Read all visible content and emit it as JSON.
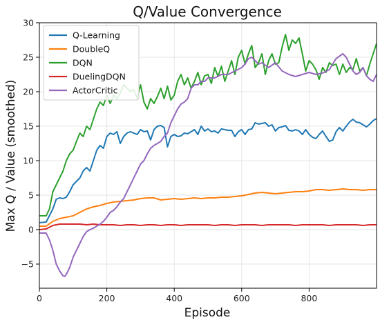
{
  "chart_data": {
    "type": "line",
    "title": "Q/Value Convergence",
    "xlabel": "Episode",
    "ylabel": "Max Q / Value (smoothed)",
    "xlim": [
      0,
      1000
    ],
    "ylim": [
      -8.5,
      30
    ],
    "xticks": [
      0,
      200,
      400,
      600,
      800
    ],
    "yticks": [
      -5,
      0,
      5,
      10,
      15,
      20,
      25,
      30
    ],
    "grid": true,
    "legend_position": "top-left",
    "series": [
      {
        "name": "Q-Learning",
        "color": "#1f77b4",
        "x": [
          0,
          20,
          40,
          50,
          60,
          70,
          80,
          90,
          100,
          110,
          120,
          130,
          140,
          150,
          160,
          170,
          180,
          190,
          200,
          210,
          220,
          230,
          240,
          250,
          260,
          270,
          280,
          290,
          300,
          310,
          320,
          330,
          340,
          350,
          360,
          370,
          380,
          390,
          400,
          410,
          420,
          430,
          440,
          450,
          460,
          470,
          480,
          490,
          500,
          510,
          520,
          530,
          540,
          550,
          560,
          570,
          580,
          590,
          600,
          610,
          620,
          630,
          640,
          650,
          660,
          670,
          680,
          690,
          700,
          710,
          720,
          730,
          740,
          750,
          760,
          770,
          780,
          790,
          800,
          810,
          820,
          830,
          840,
          850,
          860,
          870,
          880,
          890,
          900,
          910,
          920,
          930,
          940,
          950,
          960,
          970,
          980,
          990,
          1000
        ],
        "y": [
          1.0,
          1.1,
          3.0,
          4.4,
          4.6,
          4.5,
          4.7,
          5.5,
          6.5,
          7.0,
          7.5,
          8.5,
          9.0,
          8.5,
          10.0,
          11.5,
          12.2,
          11.8,
          13.5,
          14.0,
          13.8,
          14.2,
          12.5,
          13.5,
          14.0,
          14.2,
          14.0,
          13.8,
          14.5,
          14.2,
          14.3,
          13.0,
          14.5,
          15.0,
          15.1,
          14.8,
          12.0,
          13.5,
          13.8,
          13.5,
          13.6,
          14.0,
          13.9,
          14.2,
          14.5,
          13.8,
          15.0,
          14.3,
          14.6,
          14.2,
          14.3,
          14.0,
          14.6,
          14.5,
          14.4,
          14.4,
          13.5,
          14.2,
          14.5,
          13.8,
          14.5,
          14.6,
          15.5,
          15.3,
          15.4,
          15.5,
          15.0,
          15.2,
          14.3,
          14.8,
          14.9,
          15.1,
          14.4,
          14.3,
          14.5,
          14.3,
          13.8,
          14.5,
          13.8,
          13.4,
          13.2,
          13.8,
          14.3,
          13.5,
          12.8,
          13.0,
          14.2,
          14.8,
          14.3,
          15.0,
          15.6,
          16.0,
          15.6,
          15.5,
          15.2,
          14.9,
          15.3,
          15.8,
          16.1
        ]
      },
      {
        "name": "DoubleQ",
        "color": "#ff7f0e",
        "x": [
          0,
          20,
          40,
          60,
          80,
          100,
          120,
          140,
          160,
          180,
          200,
          220,
          240,
          260,
          280,
          300,
          320,
          340,
          360,
          380,
          400,
          420,
          440,
          460,
          480,
          500,
          520,
          540,
          560,
          580,
          600,
          620,
          640,
          660,
          680,
          700,
          720,
          740,
          760,
          780,
          800,
          820,
          840,
          860,
          880,
          900,
          920,
          940,
          960,
          980,
          1000
        ],
        "y": [
          0.5,
          0.5,
          1.2,
          1.6,
          1.8,
          2.0,
          2.5,
          3.0,
          3.3,
          3.5,
          3.8,
          4.0,
          4.1,
          4.2,
          4.3,
          4.5,
          4.6,
          4.6,
          4.3,
          4.4,
          4.5,
          4.4,
          4.5,
          4.6,
          4.5,
          4.6,
          4.6,
          4.7,
          4.7,
          4.8,
          4.9,
          5.1,
          5.3,
          5.4,
          5.3,
          5.2,
          5.3,
          5.4,
          5.5,
          5.5,
          5.6,
          5.8,
          5.8,
          5.7,
          5.8,
          5.9,
          5.8,
          5.8,
          5.7,
          5.8,
          5.8
        ]
      },
      {
        "name": "DQN",
        "color": "#2ca02c",
        "x": [
          0,
          20,
          30,
          40,
          50,
          60,
          70,
          80,
          90,
          100,
          110,
          120,
          130,
          140,
          150,
          160,
          170,
          180,
          190,
          200,
          210,
          220,
          230,
          240,
          250,
          260,
          270,
          280,
          290,
          300,
          310,
          320,
          330,
          340,
          350,
          360,
          370,
          380,
          390,
          400,
          410,
          420,
          430,
          440,
          450,
          460,
          470,
          480,
          490,
          500,
          510,
          520,
          530,
          540,
          550,
          560,
          570,
          580,
          590,
          600,
          610,
          620,
          630,
          640,
          650,
          660,
          670,
          680,
          690,
          700,
          710,
          720,
          730,
          740,
          750,
          760,
          770,
          780,
          790,
          800,
          810,
          820,
          830,
          840,
          850,
          860,
          870,
          880,
          890,
          900,
          910,
          920,
          930,
          940,
          950,
          960,
          970,
          980,
          990,
          1000
        ],
        "y": [
          2.0,
          2.0,
          3.0,
          5.5,
          6.5,
          7.5,
          8.5,
          10.0,
          11.0,
          11.5,
          12.8,
          14.0,
          13.5,
          15.0,
          14.5,
          16.0,
          17.5,
          18.5,
          18.0,
          19.5,
          18.3,
          19.5,
          19.0,
          19.8,
          21.0,
          20.5,
          20.0,
          20.3,
          19.0,
          21.0,
          18.5,
          17.5,
          19.0,
          18.3,
          19.3,
          20.5,
          19.0,
          20.8,
          18.8,
          19.5,
          21.5,
          22.5,
          21.0,
          22.0,
          20.5,
          21.5,
          22.8,
          21.0,
          22.3,
          22.5,
          21.2,
          23.5,
          22.2,
          23.7,
          21.5,
          23.0,
          24.5,
          22.5,
          25.0,
          26.0,
          24.0,
          25.5,
          26.7,
          23.5,
          24.2,
          25.5,
          22.5,
          24.5,
          25.5,
          24.0,
          24.2,
          26.5,
          28.3,
          26.0,
          27.5,
          27.0,
          27.8,
          25.5,
          23.0,
          24.5,
          24.0,
          23.2,
          21.8,
          23.5,
          22.8,
          24.2,
          23.8,
          24.0,
          22.5,
          24.0,
          22.8,
          23.5,
          23.2,
          24.8,
          23.0,
          23.5,
          22.3,
          24.0,
          25.5,
          27.0
        ]
      },
      {
        "name": "DuelingDQN",
        "color": "#d62728",
        "x": [
          0,
          20,
          40,
          60,
          80,
          100,
          120,
          140,
          160,
          180,
          200,
          220,
          240,
          260,
          280,
          300,
          320,
          340,
          360,
          380,
          400,
          420,
          440,
          460,
          480,
          500,
          520,
          540,
          560,
          580,
          600,
          620,
          640,
          660,
          680,
          700,
          720,
          740,
          760,
          780,
          800,
          820,
          840,
          860,
          880,
          900,
          920,
          940,
          960,
          980,
          1000
        ],
        "y": [
          0.0,
          0.1,
          0.6,
          0.8,
          0.8,
          0.8,
          0.8,
          0.7,
          0.8,
          0.7,
          0.7,
          0.7,
          0.6,
          0.7,
          0.7,
          0.6,
          0.7,
          0.7,
          0.6,
          0.7,
          0.7,
          0.6,
          0.7,
          0.7,
          0.7,
          0.7,
          0.6,
          0.7,
          0.7,
          0.6,
          0.7,
          0.7,
          0.7,
          0.6,
          0.7,
          0.7,
          0.7,
          0.7,
          0.6,
          0.7,
          0.7,
          0.7,
          0.7,
          0.6,
          0.7,
          0.7,
          0.7,
          0.7,
          0.6,
          0.7,
          0.7
        ]
      },
      {
        "name": "ActorCritic",
        "color": "#9467bd",
        "x": [
          0,
          20,
          30,
          40,
          50,
          60,
          70,
          75,
          80,
          90,
          100,
          110,
          120,
          130,
          140,
          150,
          160,
          170,
          180,
          190,
          200,
          210,
          220,
          230,
          240,
          250,
          260,
          270,
          280,
          290,
          300,
          310,
          320,
          330,
          340,
          350,
          360,
          370,
          380,
          390,
          400,
          410,
          420,
          430,
          440,
          450,
          460,
          470,
          480,
          490,
          500,
          520,
          540,
          560,
          580,
          600,
          610,
          620,
          630,
          640,
          650,
          660,
          680,
          700,
          720,
          740,
          760,
          780,
          800,
          820,
          840,
          860,
          880,
          900,
          910,
          920,
          930,
          940,
          950,
          960,
          970,
          980,
          990,
          1000
        ],
        "y": [
          -0.5,
          -0.5,
          -1.5,
          -3.0,
          -5.0,
          -6.0,
          -6.7,
          -6.8,
          -6.5,
          -5.5,
          -4.0,
          -3.0,
          -2.0,
          -1.0,
          -0.3,
          0.0,
          0.2,
          0.5,
          0.8,
          1.2,
          1.8,
          2.5,
          2.8,
          3.3,
          4.0,
          4.5,
          5.5,
          6.5,
          7.5,
          8.5,
          9.5,
          10.0,
          11.0,
          11.8,
          12.2,
          12.5,
          12.8,
          13.5,
          14.0,
          15.5,
          16.5,
          17.5,
          18.2,
          18.5,
          19.0,
          20.5,
          21.0,
          21.0,
          21.5,
          21.5,
          22.0,
          22.0,
          22.5,
          22.5,
          23.0,
          23.5,
          24.0,
          24.8,
          25.0,
          24.5,
          24.0,
          24.2,
          23.5,
          24.2,
          23.0,
          22.5,
          22.2,
          22.5,
          22.8,
          22.5,
          22.7,
          23.2,
          24.8,
          25.5,
          25.0,
          24.0,
          23.0,
          22.5,
          22.8,
          23.5,
          22.3,
          21.8,
          21.5,
          22.5
        ]
      }
    ]
  }
}
